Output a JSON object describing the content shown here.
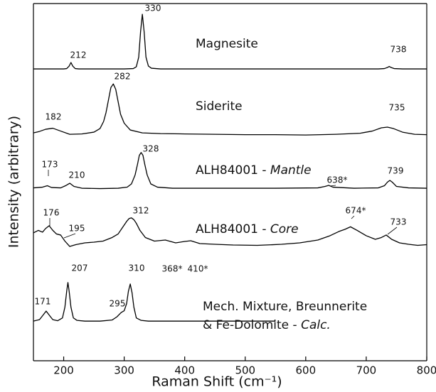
{
  "chart_data": {
    "type": "line",
    "xlabel": "Raman Shift (cm⁻¹)",
    "ylabel": "Intensity (arbitrary)",
    "xlim": [
      150,
      800
    ],
    "xticks": [
      200,
      300,
      400,
      500,
      600,
      700,
      800
    ],
    "ylim": [
      0,
      100
    ],
    "color": "#000000",
    "series": [
      {
        "name_lines": [
          [
            "Magnesite"
          ]
        ],
        "peak_labels": [
          "212",
          "330",
          "738"
        ],
        "x": [
          150,
          190,
          200,
          205,
          209,
          212,
          215,
          219,
          225,
          260,
          300,
          315,
          320,
          324,
          327,
          330,
          333,
          336,
          340,
          345,
          360,
          450,
          600,
          720,
          730,
          735,
          738,
          741,
          746,
          760,
          800
        ],
        "values": [
          81.7,
          81.7,
          81.7,
          81.8,
          82.5,
          83.5,
          82.5,
          81.8,
          81.7,
          81.7,
          81.7,
          81.8,
          82.3,
          85,
          92,
          97,
          92,
          85,
          82.5,
          81.9,
          81.7,
          81.7,
          81.7,
          81.7,
          81.8,
          82.1,
          82.4,
          82.1,
          81.8,
          81.7,
          81.7
        ]
      },
      {
        "name_lines": [
          [
            "Siderite"
          ]
        ],
        "peak_labels": [
          "182",
          "282",
          "735"
        ],
        "x": [
          150,
          160,
          170,
          182,
          195,
          210,
          230,
          250,
          260,
          266,
          270,
          274,
          278,
          282,
          286,
          290,
          294,
          300,
          310,
          330,
          360,
          400,
          450,
          500,
          550,
          600,
          650,
          690,
          710,
          725,
          735,
          745,
          760,
          780,
          800
        ],
        "values": [
          63.8,
          64.2,
          64.8,
          65.1,
          64.3,
          63.4,
          63.5,
          64,
          65,
          67,
          69.5,
          73,
          76.5,
          77.5,
          76,
          72.5,
          69,
          66.5,
          64.6,
          63.8,
          63.6,
          63.5,
          63.4,
          63.3,
          63.3,
          63.2,
          63.4,
          63.7,
          64.3,
          65.2,
          65.4,
          65,
          64,
          63.4,
          63.3
        ]
      },
      {
        "name_lines": [
          [
            "ALH84001 - ",
            "Mantle"
          ]
        ],
        "peak_labels": [
          "173",
          "210",
          "328",
          "638*",
          "739"
        ],
        "x": [
          150,
          165,
          173,
          180,
          195,
          203,
          210,
          217,
          230,
          260,
          290,
          305,
          312,
          318,
          322,
          325,
          328,
          331,
          334,
          338,
          344,
          355,
          380,
          450,
          550,
          620,
          632,
          638,
          645,
          680,
          720,
          730,
          735,
          739,
          743,
          750,
          770,
          800
        ],
        "values": [
          48.4,
          48.6,
          49,
          48.5,
          48.4,
          49,
          49.7,
          48.8,
          48.3,
          48.2,
          48.3,
          48.6,
          49.5,
          52,
          55,
          57.5,
          58.3,
          57.5,
          55,
          52,
          49.5,
          48.6,
          48.3,
          48.3,
          48.3,
          48.4,
          48.8,
          49.1,
          48.6,
          48.3,
          48.4,
          49,
          50,
          50.5,
          50,
          48.8,
          48.4,
          48.3
        ]
      },
      {
        "name_lines": [
          [
            "ALH84001 - ",
            "Core"
          ]
        ],
        "peak_labels": [
          "176",
          "195",
          "312",
          "368*",
          "410*",
          "674*",
          "733"
        ],
        "x": [
          150,
          158,
          165,
          170,
          176,
          182,
          188,
          195,
          202,
          210,
          220,
          235,
          250,
          265,
          280,
          290,
          298,
          304,
          308,
          312,
          316,
          320,
          326,
          335,
          350,
          368,
          385,
          400,
          410,
          425,
          450,
          480,
          520,
          560,
          590,
          620,
          640,
          655,
          665,
          674,
          685,
          700,
          715,
          725,
          733,
          742,
          755,
          770,
          785,
          800
        ],
        "values": [
          35.8,
          36.5,
          36,
          37,
          37.8,
          36.5,
          35.5,
          35.2,
          33.5,
          32,
          32.5,
          33,
          33.2,
          33.5,
          34.5,
          35.5,
          37.5,
          39,
          39.8,
          40,
          39.5,
          38.5,
          36.5,
          34.5,
          33.5,
          33.8,
          33,
          33.4,
          33.6,
          32.8,
          32.6,
          32.4,
          32.3,
          32.6,
          33,
          33.8,
          35,
          36.2,
          36.8,
          37.5,
          36.5,
          35,
          34,
          34.5,
          35.2,
          34,
          33,
          32.6,
          32.3,
          32.5
        ]
      },
      {
        "name_lines": [
          [
            "Mech. Mixture, Breunnerite"
          ],
          [
            "& Fe-Dolomite - ",
            "Calc."
          ]
        ],
        "peak_labels": [
          "171",
          "207",
          "295",
          "310"
        ],
        "x": [
          150,
          160,
          166,
          171,
          176,
          182,
          190,
          198,
          202,
          205,
          207,
          209,
          212,
          216,
          222,
          235,
          260,
          280,
          288,
          295,
          300,
          304,
          307,
          310,
          313,
          316,
          320,
          328,
          340,
          380,
          450,
          550
        ],
        "values": [
          11.1,
          11.5,
          12.8,
          13.9,
          12.8,
          11.5,
          11.2,
          12,
          15,
          19.5,
          21.9,
          19.5,
          15,
          12,
          11.3,
          11.1,
          11.1,
          11.4,
          12.3,
          13.5,
          14,
          16,
          19.5,
          21.5,
          19,
          15,
          12,
          11.3,
          11.1,
          11.1,
          11.1,
          11.1
        ]
      }
    ]
  }
}
